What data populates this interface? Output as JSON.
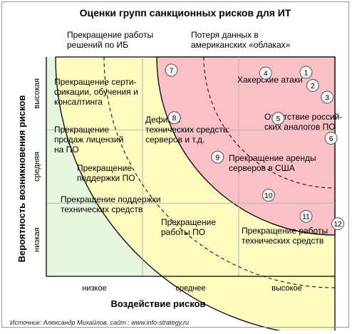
{
  "chart_data": {
    "type": "risk-matrix",
    "title": "Оценки групп санкционных рисков для ИТ",
    "xlabel": "Воздействие рисков",
    "ylabel": "Вероятность возникновения рисков",
    "x_levels": [
      "низкое",
      "среднее",
      "высокое"
    ],
    "y_levels": [
      "низкая",
      "средняя",
      "высокая"
    ],
    "grid": true,
    "zone_colors": {
      "high": "#f9c1c6",
      "medium": "#fdfbbe",
      "low": "#e6f7de"
    },
    "source": "Источник: Александр Михайлов, сайт : www.info-strategy.ru",
    "risks": [
      {
        "id": 1,
        "label": [
          "Потеря данных в",
          "американских «облаках»"
        ],
        "x": 2.7,
        "y": 2.79
      },
      {
        "id": 2,
        "label": [
          "Хакерские атаки"
        ],
        "x": 2.77,
        "y": 2.61
      },
      {
        "id": 3,
        "label": [
          "Отсутствие россий-",
          "ских аналогов ПО"
        ],
        "x": 2.92,
        "y": 2.45
      },
      {
        "id": 4,
        "label": [
          "Прекращение работы",
          "решений по ИБ"
        ],
        "x": 2.28,
        "y": 2.78
      },
      {
        "id": 5,
        "label": [
          "Дефицит",
          "технических средств:",
          "серверов и т.д."
        ],
        "x": 2.41,
        "y": 2.16
      },
      {
        "id": 6,
        "label": [
          "Прекращение аренды",
          "серверов в США"
        ],
        "x": 2.96,
        "y": 1.89
      },
      {
        "id": 7,
        "label": [
          "Прекращение серти-",
          "фикации, обучения и",
          "консалтинга"
        ],
        "x": 1.3,
        "y": 2.82
      },
      {
        "id": 8,
        "label": [
          "Прекращение",
          "продаж лицензий",
          "на ПО"
        ],
        "x": 1.33,
        "y": 2.17
      },
      {
        "id": 9,
        "label": [
          "Прекращение",
          "поддержки ПО"
        ],
        "x": 1.78,
        "y": 1.63
      },
      {
        "id": 10,
        "label": [
          "Прекращение поддержки",
          "технических средств"
        ],
        "x": 2.31,
        "y": 1.11
      },
      {
        "id": 11,
        "label": [
          "Прекращение",
          "работы ПО"
        ],
        "x": 2.7,
        "y": 0.82
      },
      {
        "id": 12,
        "label": [
          "Прекращение работы",
          "технических средств"
        ],
        "x": 3.03,
        "y": 0.72
      }
    ]
  }
}
